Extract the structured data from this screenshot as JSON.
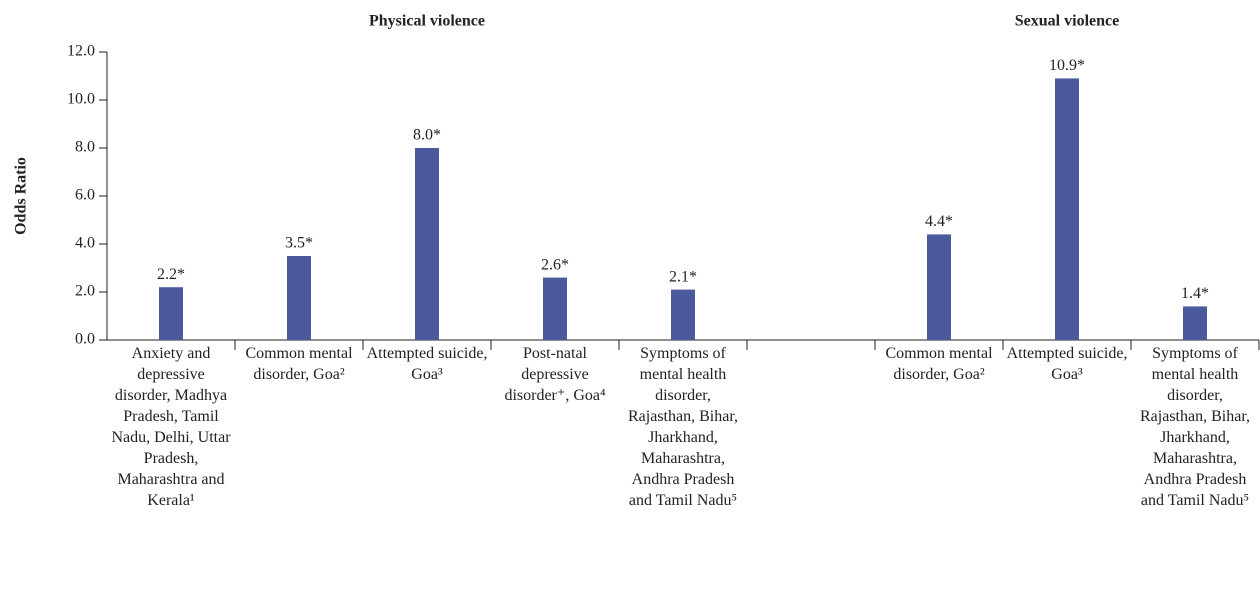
{
  "chart_data": {
    "type": "bar",
    "ylabel": "Odds Ratio",
    "annotations": [
      {
        "text": "Physical violence",
        "category": 2
      },
      {
        "text": "Sexual violence",
        "category": 7
      }
    ],
    "categories": [
      "Anxiety and depressive disorder, Madhya Pradesh, Tamil Nadu, Delhi, Uttar Pradesh, Maharashtra and Kerala¹",
      "Common mental disorder, Goa²",
      "Attempted suicide, Goa³",
      "Post-natal depressive disorder⁺, Goa⁴",
      "Symptoms of mental health disorder, Rajasthan, Bihar, Jharkhand, Maharashtra, Andhra Pradesh and Tamil Nadu⁵",
      null,
      "Common mental disorder, Goa²",
      "Attempted suicide, Goa³",
      "Symptoms of mental health disorder, Rajasthan, Bihar, Jharkhand, Maharashtra, Andhra Pradesh and Tamil Nadu⁵"
    ],
    "values": [
      2.2,
      3.5,
      8.0,
      2.6,
      2.1,
      null,
      4.4,
      10.9,
      1.4
    ],
    "value_labels": [
      "2.2*",
      "3.5*",
      "8.0*",
      "2.6*",
      "2.1*",
      null,
      "4.4*",
      "10.9*",
      "1.4*"
    ],
    "color": "#4a5a9c",
    "ylim": [
      0,
      12
    ],
    "yticks": [
      {
        "value": 0,
        "label": "0.0"
      },
      {
        "value": 2,
        "label": "2.0"
      },
      {
        "value": 4,
        "label": "4.0"
      },
      {
        "value": 6,
        "label": "6.0"
      },
      {
        "value": 8,
        "label": "8.0"
      },
      {
        "value": 10,
        "label": "10.0"
      },
      {
        "value": 12,
        "label": "12.0"
      }
    ],
    "grid": false
  }
}
